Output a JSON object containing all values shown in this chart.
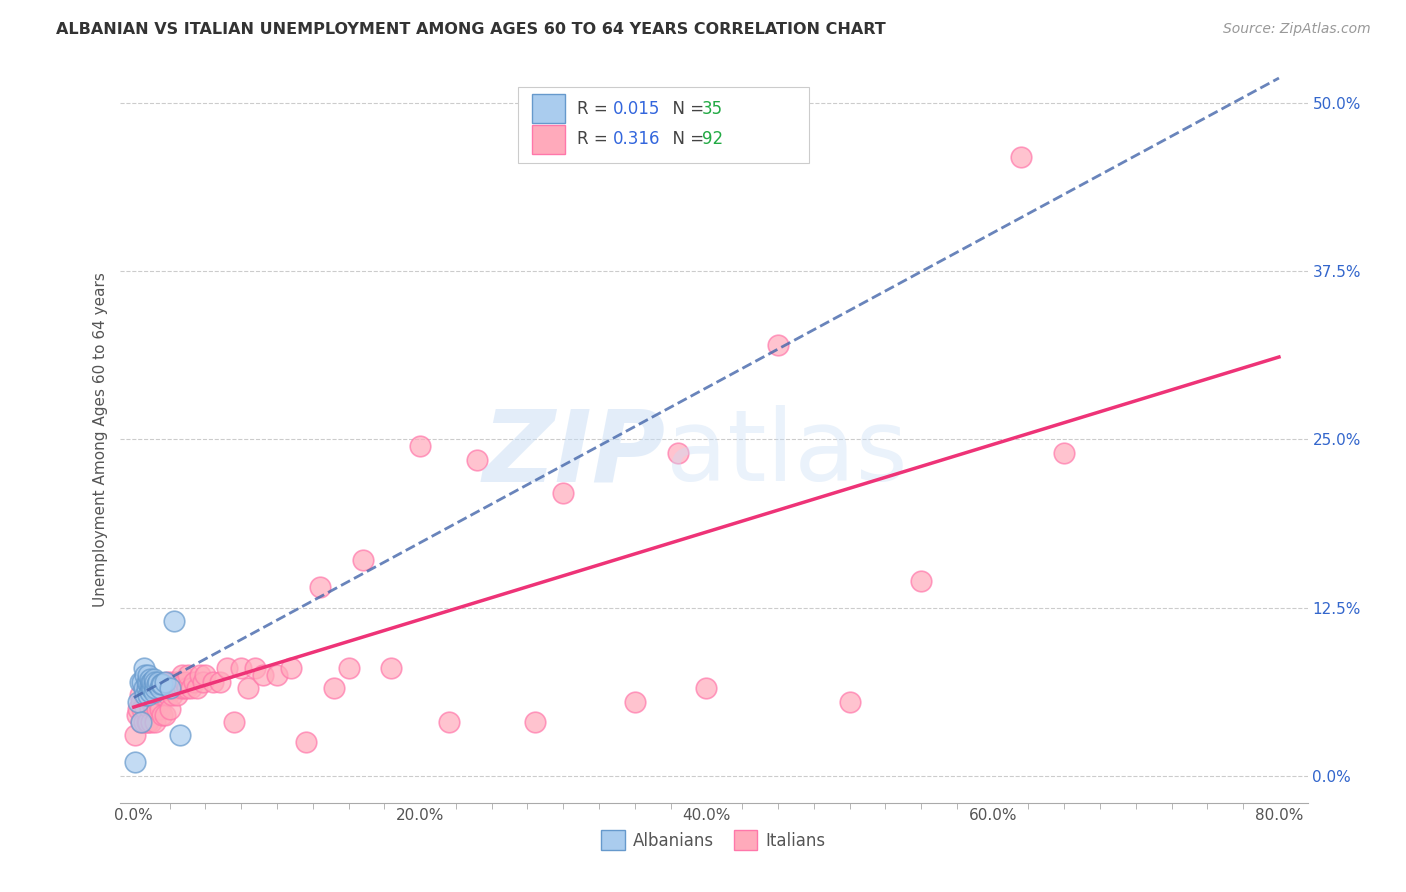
{
  "title": "ALBANIAN VS ITALIAN UNEMPLOYMENT AMONG AGES 60 TO 64 YEARS CORRELATION CHART",
  "source": "Source: ZipAtlas.com",
  "ylabel": "Unemployment Among Ages 60 to 64 years",
  "xlabel_ticks": [
    "0.0%",
    "",
    "",
    "",
    "",
    "",
    "",
    "",
    "20.0%",
    "",
    "",
    "",
    "",
    "",
    "",
    "",
    "40.0%",
    "",
    "",
    "",
    "",
    "",
    "",
    "",
    "60.0%",
    "",
    "",
    "",
    "",
    "",
    "",
    "",
    "80.0%"
  ],
  "xlabel_vals_major": [
    0.0,
    0.2,
    0.4,
    0.6,
    0.8
  ],
  "xlabel_major_labels": [
    "0.0%",
    "20.0%",
    "40.0%",
    "60.0%",
    "80.0%"
  ],
  "ylabel_ticks": [
    "0.0%",
    "12.5%",
    "25.0%",
    "37.5%",
    "50.0%"
  ],
  "ylabel_vals": [
    0.0,
    0.125,
    0.25,
    0.375,
    0.5
  ],
  "xlim": [
    -0.01,
    0.82
  ],
  "ylim": [
    -0.02,
    0.52
  ],
  "albanian_R": 0.015,
  "albanian_N": 35,
  "italian_R": 0.316,
  "italian_N": 92,
  "albanian_color": "#aaccee",
  "albanian_edge": "#6699cc",
  "italian_color": "#ffaabb",
  "italian_edge": "#ff77aa",
  "albanian_line_color": "#4466aa",
  "italian_line_color": "#ee3377",
  "legend_r_color": "#3366dd",
  "legend_n_color": "#22aa44",
  "albanian_x": [
    0.001,
    0.003,
    0.004,
    0.005,
    0.006,
    0.007,
    0.007,
    0.008,
    0.008,
    0.009,
    0.009,
    0.01,
    0.01,
    0.01,
    0.011,
    0.011,
    0.011,
    0.012,
    0.012,
    0.013,
    0.013,
    0.014,
    0.014,
    0.014,
    0.015,
    0.015,
    0.016,
    0.017,
    0.018,
    0.019,
    0.02,
    0.022,
    0.025,
    0.028,
    0.032
  ],
  "albanian_y": [
    0.01,
    0.055,
    0.07,
    0.04,
    0.07,
    0.065,
    0.08,
    0.06,
    0.075,
    0.065,
    0.07,
    0.06,
    0.07,
    0.075,
    0.062,
    0.068,
    0.072,
    0.065,
    0.07,
    0.065,
    0.07,
    0.062,
    0.068,
    0.072,
    0.065,
    0.07,
    0.068,
    0.07,
    0.065,
    0.068,
    0.068,
    0.07,
    0.065,
    0.115,
    0.03
  ],
  "italian_x": [
    0.001,
    0.002,
    0.003,
    0.004,
    0.005,
    0.005,
    0.006,
    0.007,
    0.007,
    0.008,
    0.008,
    0.009,
    0.009,
    0.01,
    0.01,
    0.01,
    0.011,
    0.011,
    0.012,
    0.012,
    0.012,
    0.013,
    0.013,
    0.014,
    0.014,
    0.015,
    0.015,
    0.015,
    0.016,
    0.016,
    0.017,
    0.017,
    0.018,
    0.018,
    0.019,
    0.02,
    0.02,
    0.021,
    0.022,
    0.022,
    0.023,
    0.024,
    0.025,
    0.025,
    0.026,
    0.027,
    0.028,
    0.029,
    0.03,
    0.031,
    0.032,
    0.033,
    0.034,
    0.035,
    0.036,
    0.037,
    0.038,
    0.04,
    0.042,
    0.044,
    0.046,
    0.048,
    0.05,
    0.055,
    0.06,
    0.065,
    0.07,
    0.075,
    0.08,
    0.085,
    0.09,
    0.1,
    0.11,
    0.12,
    0.13,
    0.14,
    0.15,
    0.16,
    0.18,
    0.2,
    0.22,
    0.24,
    0.28,
    0.3,
    0.35,
    0.38,
    0.4,
    0.45,
    0.5,
    0.55,
    0.62,
    0.65
  ],
  "italian_y": [
    0.03,
    0.045,
    0.05,
    0.06,
    0.04,
    0.055,
    0.05,
    0.04,
    0.06,
    0.05,
    0.065,
    0.04,
    0.06,
    0.04,
    0.055,
    0.065,
    0.05,
    0.065,
    0.04,
    0.055,
    0.07,
    0.055,
    0.065,
    0.05,
    0.065,
    0.04,
    0.055,
    0.065,
    0.05,
    0.065,
    0.055,
    0.065,
    0.05,
    0.065,
    0.06,
    0.045,
    0.065,
    0.06,
    0.045,
    0.065,
    0.07,
    0.06,
    0.05,
    0.065,
    0.07,
    0.06,
    0.065,
    0.07,
    0.06,
    0.07,
    0.07,
    0.065,
    0.075,
    0.065,
    0.07,
    0.065,
    0.075,
    0.065,
    0.07,
    0.065,
    0.075,
    0.07,
    0.075,
    0.07,
    0.07,
    0.08,
    0.04,
    0.08,
    0.065,
    0.08,
    0.075,
    0.075,
    0.08,
    0.025,
    0.14,
    0.065,
    0.08,
    0.16,
    0.08,
    0.245,
    0.04,
    0.235,
    0.04,
    0.21,
    0.055,
    0.24,
    0.065,
    0.32,
    0.055,
    0.145,
    0.46,
    0.24
  ]
}
